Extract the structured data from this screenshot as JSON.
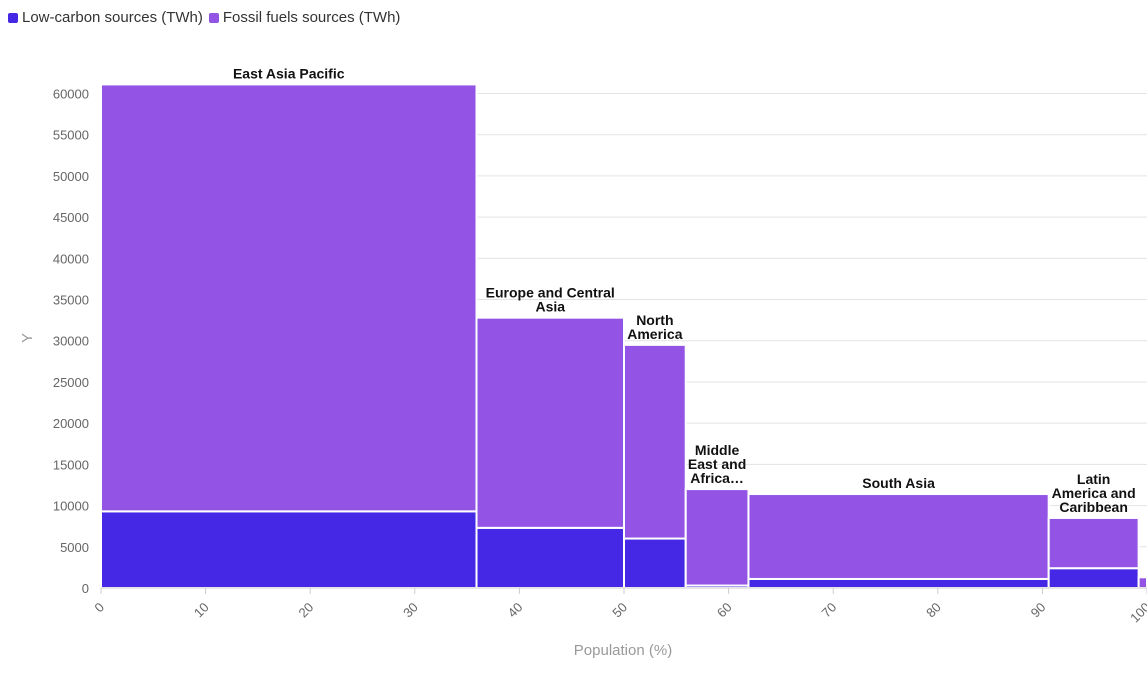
{
  "legend": [
    {
      "label": "Low-carbon sources (TWh)",
      "color": "#4428e6"
    },
    {
      "label": "Fossil fuels sources (TWh)",
      "color": "#9354e6"
    }
  ],
  "chart_data": {
    "type": "bar",
    "subtype": "marimekko",
    "xlabel": "Population (%)",
    "ylabel": "Y",
    "xlim": [
      0,
      100
    ],
    "ylim": [
      0,
      62000
    ],
    "x_ticks": [
      0,
      10,
      20,
      30,
      40,
      50,
      60,
      70,
      80,
      90,
      100
    ],
    "y_ticks": [
      0,
      5000,
      10000,
      15000,
      20000,
      25000,
      30000,
      35000,
      40000,
      45000,
      50000,
      55000,
      60000
    ],
    "grid": true,
    "legend_position": "top-left",
    "series": [
      {
        "name": "Low-carbon sources (TWh)",
        "color": "#4428e6"
      },
      {
        "name": "Fossil fuels sources (TWh)",
        "color": "#9354e6"
      }
    ],
    "categories": [
      {
        "label": "East Asia Pacific",
        "label_lines": [
          "East Asia Pacific"
        ],
        "x_start": 0,
        "x_end": 35.9,
        "low_carbon": 9300,
        "fossil": 51800
      },
      {
        "label": "Europe and Central Asia",
        "label_lines": [
          "Europe and Central",
          "Asia"
        ],
        "x_start": 35.9,
        "x_end": 50.0,
        "low_carbon": 7300,
        "fossil": 25500
      },
      {
        "label": "North America",
        "label_lines": [
          "North",
          "America"
        ],
        "x_start": 50.0,
        "x_end": 55.9,
        "low_carbon": 6000,
        "fossil": 23500
      },
      {
        "label": "Middle East and Africa…",
        "label_lines": [
          "Middle",
          "East and",
          "Africa…"
        ],
        "x_start": 55.9,
        "x_end": 61.9,
        "low_carbon": 300,
        "fossil": 11700
      },
      {
        "label": "South Asia",
        "label_lines": [
          "South Asia"
        ],
        "x_start": 61.9,
        "x_end": 90.6,
        "low_carbon": 1100,
        "fossil": 10300
      },
      {
        "label": "Latin America and Caribbean",
        "label_lines": [
          "Latin",
          "America and",
          "Caribbean"
        ],
        "x_start": 90.6,
        "x_end": 99.2,
        "low_carbon": 2400,
        "fossil": 6100
      },
      {
        "label": "",
        "label_lines": [],
        "x_start": 99.2,
        "x_end": 100,
        "low_carbon": 0,
        "fossil": 1300
      }
    ]
  }
}
